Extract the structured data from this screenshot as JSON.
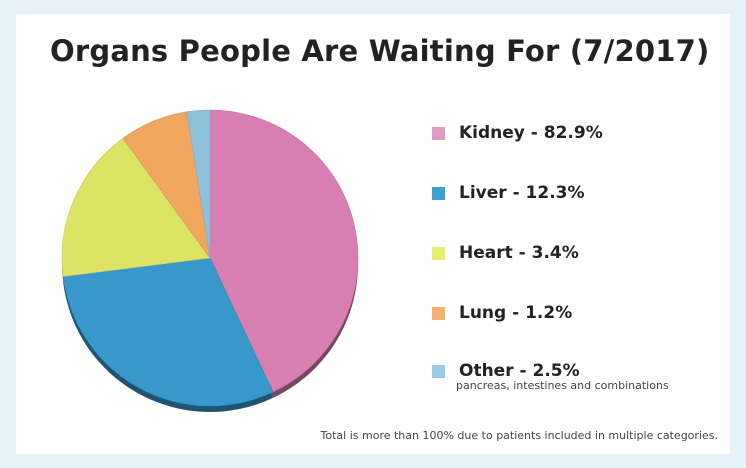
{
  "chart_data": {
    "type": "pie",
    "title": "Organs People Are Waiting For (7/2017)",
    "categories": [
      "Kidney",
      "Liver",
      "Heart",
      "Lung",
      "Other"
    ],
    "values": [
      82.9,
      12.3,
      3.4,
      1.2,
      2.5
    ],
    "legend": [
      {
        "label": "Kidney - 82.9%",
        "color": "#e29ac4"
      },
      {
        "label": "Liver - 12.3%",
        "color": "#3a9fd4"
      },
      {
        "label": "Heart - 3.4%",
        "color": "#e8ee6a"
      },
      {
        "label": "Lung - 1.2%",
        "color": "#f5b26e"
      },
      {
        "label": "Other - 2.5%",
        "color": "#99cbe4"
      }
    ],
    "other_note": "pancreas, intestines and combinations",
    "footnote": "Total is more than 100% due to patients included in multiple categories.",
    "legend_position": "right",
    "slice_colors": {
      "kidney": "#d77fb2",
      "liver": "#3898cb",
      "heart": "#dde364",
      "lung": "#f0a65e",
      "other": "#8fc0da"
    }
  }
}
